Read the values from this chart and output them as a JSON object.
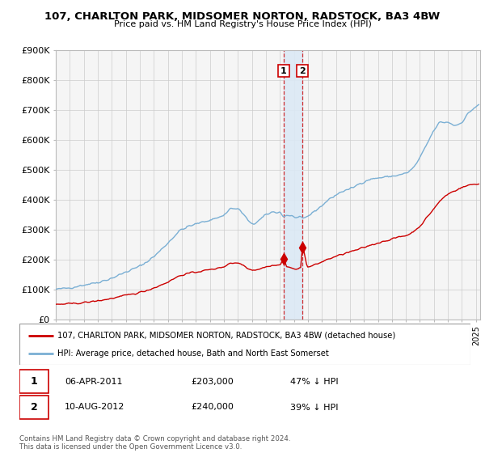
{
  "title": "107, CHARLTON PARK, MIDSOMER NORTON, RADSTOCK, BA3 4BW",
  "subtitle": "Price paid vs. HM Land Registry's House Price Index (HPI)",
  "ylim": [
    0,
    900000
  ],
  "yticks": [
    0,
    100000,
    200000,
    300000,
    400000,
    500000,
    600000,
    700000,
    800000,
    900000
  ],
  "ytick_labels": [
    "£0",
    "£100K",
    "£200K",
    "£300K",
    "£400K",
    "£500K",
    "£600K",
    "£700K",
    "£800K",
    "£900K"
  ],
  "xlim": [
    1995.0,
    2025.3
  ],
  "background_color": "#ffffff",
  "plot_bg_color": "#f5f5f5",
  "red_line_color": "#cc0000",
  "blue_line_color": "#7aafd4",
  "shade_color": "#dce9f5",
  "marker_color": "#cc0000",
  "grid_color": "#cccccc",
  "annotation1": {
    "x_year": 2011.27,
    "y": 203000,
    "label": "1",
    "date": "06-APR-2011",
    "price": "£203,000",
    "hpi_diff": "47% ↓ HPI"
  },
  "annotation2": {
    "x_year": 2012.61,
    "y": 240000,
    "label": "2",
    "date": "10-AUG-2012",
    "price": "£240,000",
    "hpi_diff": "39% ↓ HPI"
  },
  "legend_red_label": "107, CHARLTON PARK, MIDSOMER NORTON, RADSTOCK, BA3 4BW (detached house)",
  "legend_blue_label": "HPI: Average price, detached house, Bath and North East Somerset",
  "footer": "Contains HM Land Registry data © Crown copyright and database right 2024.\nThis data is licensed under the Open Government Licence v3.0."
}
